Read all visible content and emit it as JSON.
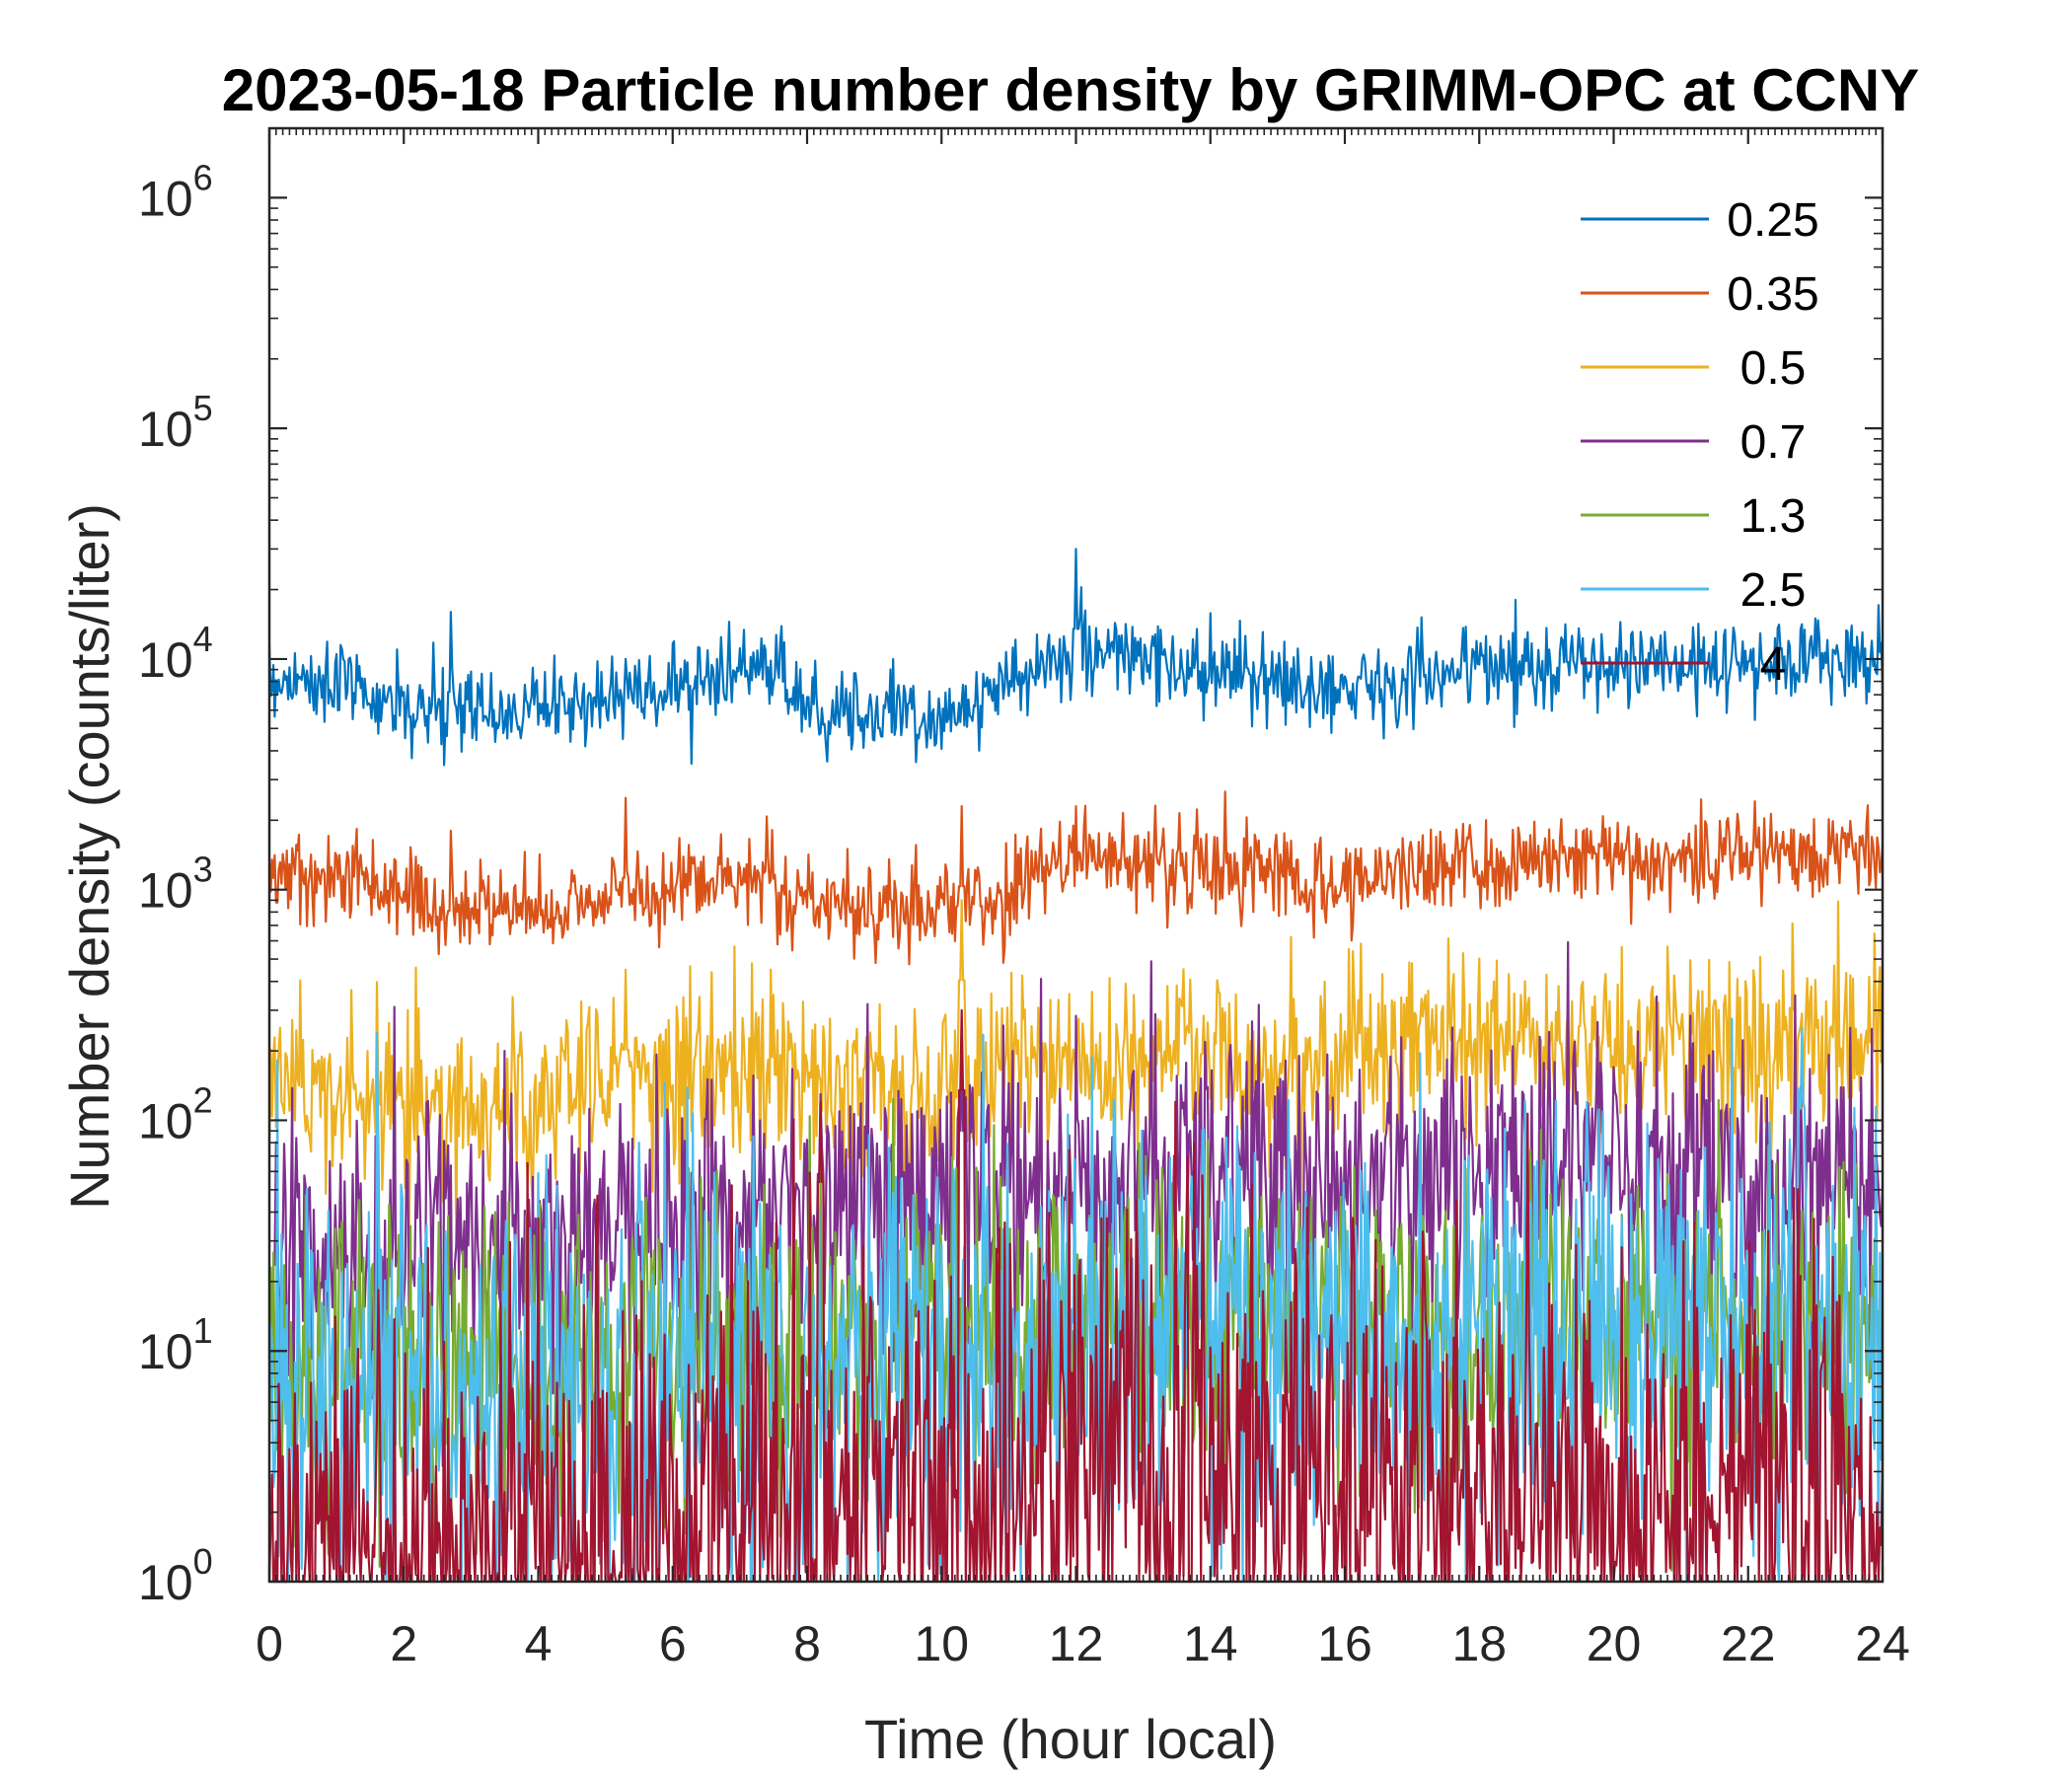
{
  "chart_data": {
    "type": "line",
    "title": "2023-05-18 Particle number density by GRIMM-OPC at CCNY",
    "xlabel": "Time (hour local)",
    "ylabel": "Number density (counts/liter)",
    "xlim": [
      0,
      24
    ],
    "ylim": [
      1,
      2000000
    ],
    "yscale": "log",
    "x_ticks": [
      0,
      2,
      4,
      6,
      8,
      10,
      12,
      14,
      16,
      18,
      20,
      22,
      24
    ],
    "x_tick_labels": [
      "0",
      "2",
      "4",
      "6",
      "8",
      "10",
      "12",
      "14",
      "16",
      "18",
      "20",
      "22",
      "24"
    ],
    "y_ticks": [
      1,
      10,
      100,
      1000,
      10000,
      100000,
      1000000
    ],
    "y_tick_base": "10",
    "y_tick_exponents": [
      "0",
      "1",
      "2",
      "3",
      "4",
      "5",
      "6"
    ],
    "legend_position": "top-right",
    "series": [
      {
        "name": "0.25",
        "color": "#0072BD",
        "noise": 0.09,
        "x": [
          0,
          0.8,
          1.5,
          2.0,
          2.5,
          3.0,
          4.0,
          5.0,
          6.0,
          7.0,
          7.5,
          8.0,
          9.0,
          10.0,
          11.0,
          12.0,
          13.0,
          14.0,
          15.0,
          16.0,
          17.0,
          18.0,
          19.0,
          20.0,
          21.0,
          22.0,
          23.0,
          24.0
        ],
        "y": [
          8200,
          8000,
          7000,
          6000,
          5600,
          5800,
          6200,
          6800,
          7500,
          9000,
          8500,
          6500,
          5800,
          5600,
          7500,
          11000,
          10000,
          8500,
          7800,
          7500,
          8500,
          9200,
          9500,
          9300,
          9300,
          9500,
          10500,
          9500
        ],
        "spikes": [
          [
            1.9,
            11000
          ],
          [
            2.7,
            16000
          ],
          [
            12.0,
            30000
          ],
          [
            1.0,
            10500
          ],
          [
            5.3,
            10000
          ],
          [
            23.0,
            15000
          ]
        ]
      },
      {
        "name": "0.35",
        "color": "#D95319",
        "noise": 0.1,
        "x": [
          0,
          1.0,
          1.5,
          2.0,
          2.5,
          3.0,
          4.0,
          5.0,
          6.0,
          7.0,
          7.5,
          8.0,
          9.0,
          10.0,
          11.0,
          12.0,
          13.0,
          14.0,
          15.0,
          16.0,
          17.0,
          18.0,
          19.0,
          20.0,
          21.0,
          22.0,
          23.0,
          24.0
        ],
        "y": [
          1200,
          1200,
          1050,
          950,
          800,
          800,
          850,
          900,
          1000,
          1200,
          1150,
          900,
          800,
          800,
          950,
          1400,
          1350,
          1250,
          1150,
          1100,
          1200,
          1300,
          1350,
          1350,
          1400,
          1450,
          1500,
          1450
        ],
        "spikes": [
          [
            2.7,
            1800
          ],
          [
            5.3,
            2500
          ],
          [
            10.3,
            2300
          ],
          [
            12.0,
            2300
          ],
          [
            8.6,
            1500
          ]
        ]
      },
      {
        "name": "0.5",
        "color": "#EDB120",
        "noise": 0.2,
        "x": [
          0,
          1.0,
          2.0,
          3.0,
          4.0,
          5.0,
          6.0,
          7.0,
          7.5,
          8.0,
          9.0,
          10.0,
          11.0,
          12.0,
          13.0,
          14.0,
          15.0,
          16.0,
          17.0,
          18.0,
          19.0,
          20.0,
          21.0,
          22.0,
          23.0,
          24.0
        ],
        "y": [
          150,
          150,
          120,
          110,
          110,
          140,
          160,
          190,
          170,
          140,
          140,
          130,
          160,
          190,
          200,
          200,
          180,
          180,
          200,
          220,
          210,
          210,
          215,
          215,
          210,
          210
        ],
        "spikes": [
          [
            5.3,
            450
          ],
          [
            10.3,
            900
          ],
          [
            7.5,
            350
          ],
          [
            17.2,
            350
          ],
          [
            2.4,
            55
          ]
        ]
      },
      {
        "name": "0.7",
        "color": "#7E2F8E",
        "noise": 0.32,
        "x": [
          0,
          2.0,
          4.0,
          6.0,
          8.0,
          10.0,
          12.0,
          14.0,
          16.0,
          18.0,
          20.0,
          22.0,
          24.0
        ],
        "y": [
          28,
          28,
          28,
          35,
          40,
          40,
          50,
          60,
          55,
          60,
          60,
          55,
          55
        ],
        "spikes": [
          [
            10.3,
            200
          ],
          [
            8.2,
            130
          ],
          [
            7.3,
            100
          ]
        ]
      },
      {
        "name": "1.3",
        "color": "#77AC30",
        "noise": 0.35,
        "x": [
          0,
          4.0,
          8.0,
          12.0,
          16.0,
          20.0,
          24.0
        ],
        "y": [
          9,
          9,
          10,
          12,
          13,
          13,
          12
        ],
        "spikes": []
      },
      {
        "name": "2.5",
        "color": "#4DBEEE",
        "noise": 0.48,
        "x": [
          0,
          4.0,
          8.0,
          12.0,
          16.0,
          20.0,
          24.0
        ],
        "y": [
          6,
          6,
          8,
          11,
          12,
          12,
          11
        ],
        "spikes": [
          [
            22.8,
            250
          ],
          [
            19.6,
            120
          ],
          [
            5.5,
            80
          ]
        ]
      },
      {
        "name": "4",
        "color": "#A2142F",
        "noise": 0.55,
        "x": [
          0,
          4.0,
          6.5,
          8.0,
          10.0,
          12.0,
          14.0,
          16.0,
          20.0,
          24.0
        ],
        "y": [
          1.3,
          1.4,
          1.8,
          2.2,
          2.5,
          3.2,
          3.2,
          2.8,
          2.5,
          2.2
        ],
        "spikes": [
          [
            10.3,
            300
          ],
          [
            8.2,
            120
          ]
        ]
      }
    ]
  }
}
